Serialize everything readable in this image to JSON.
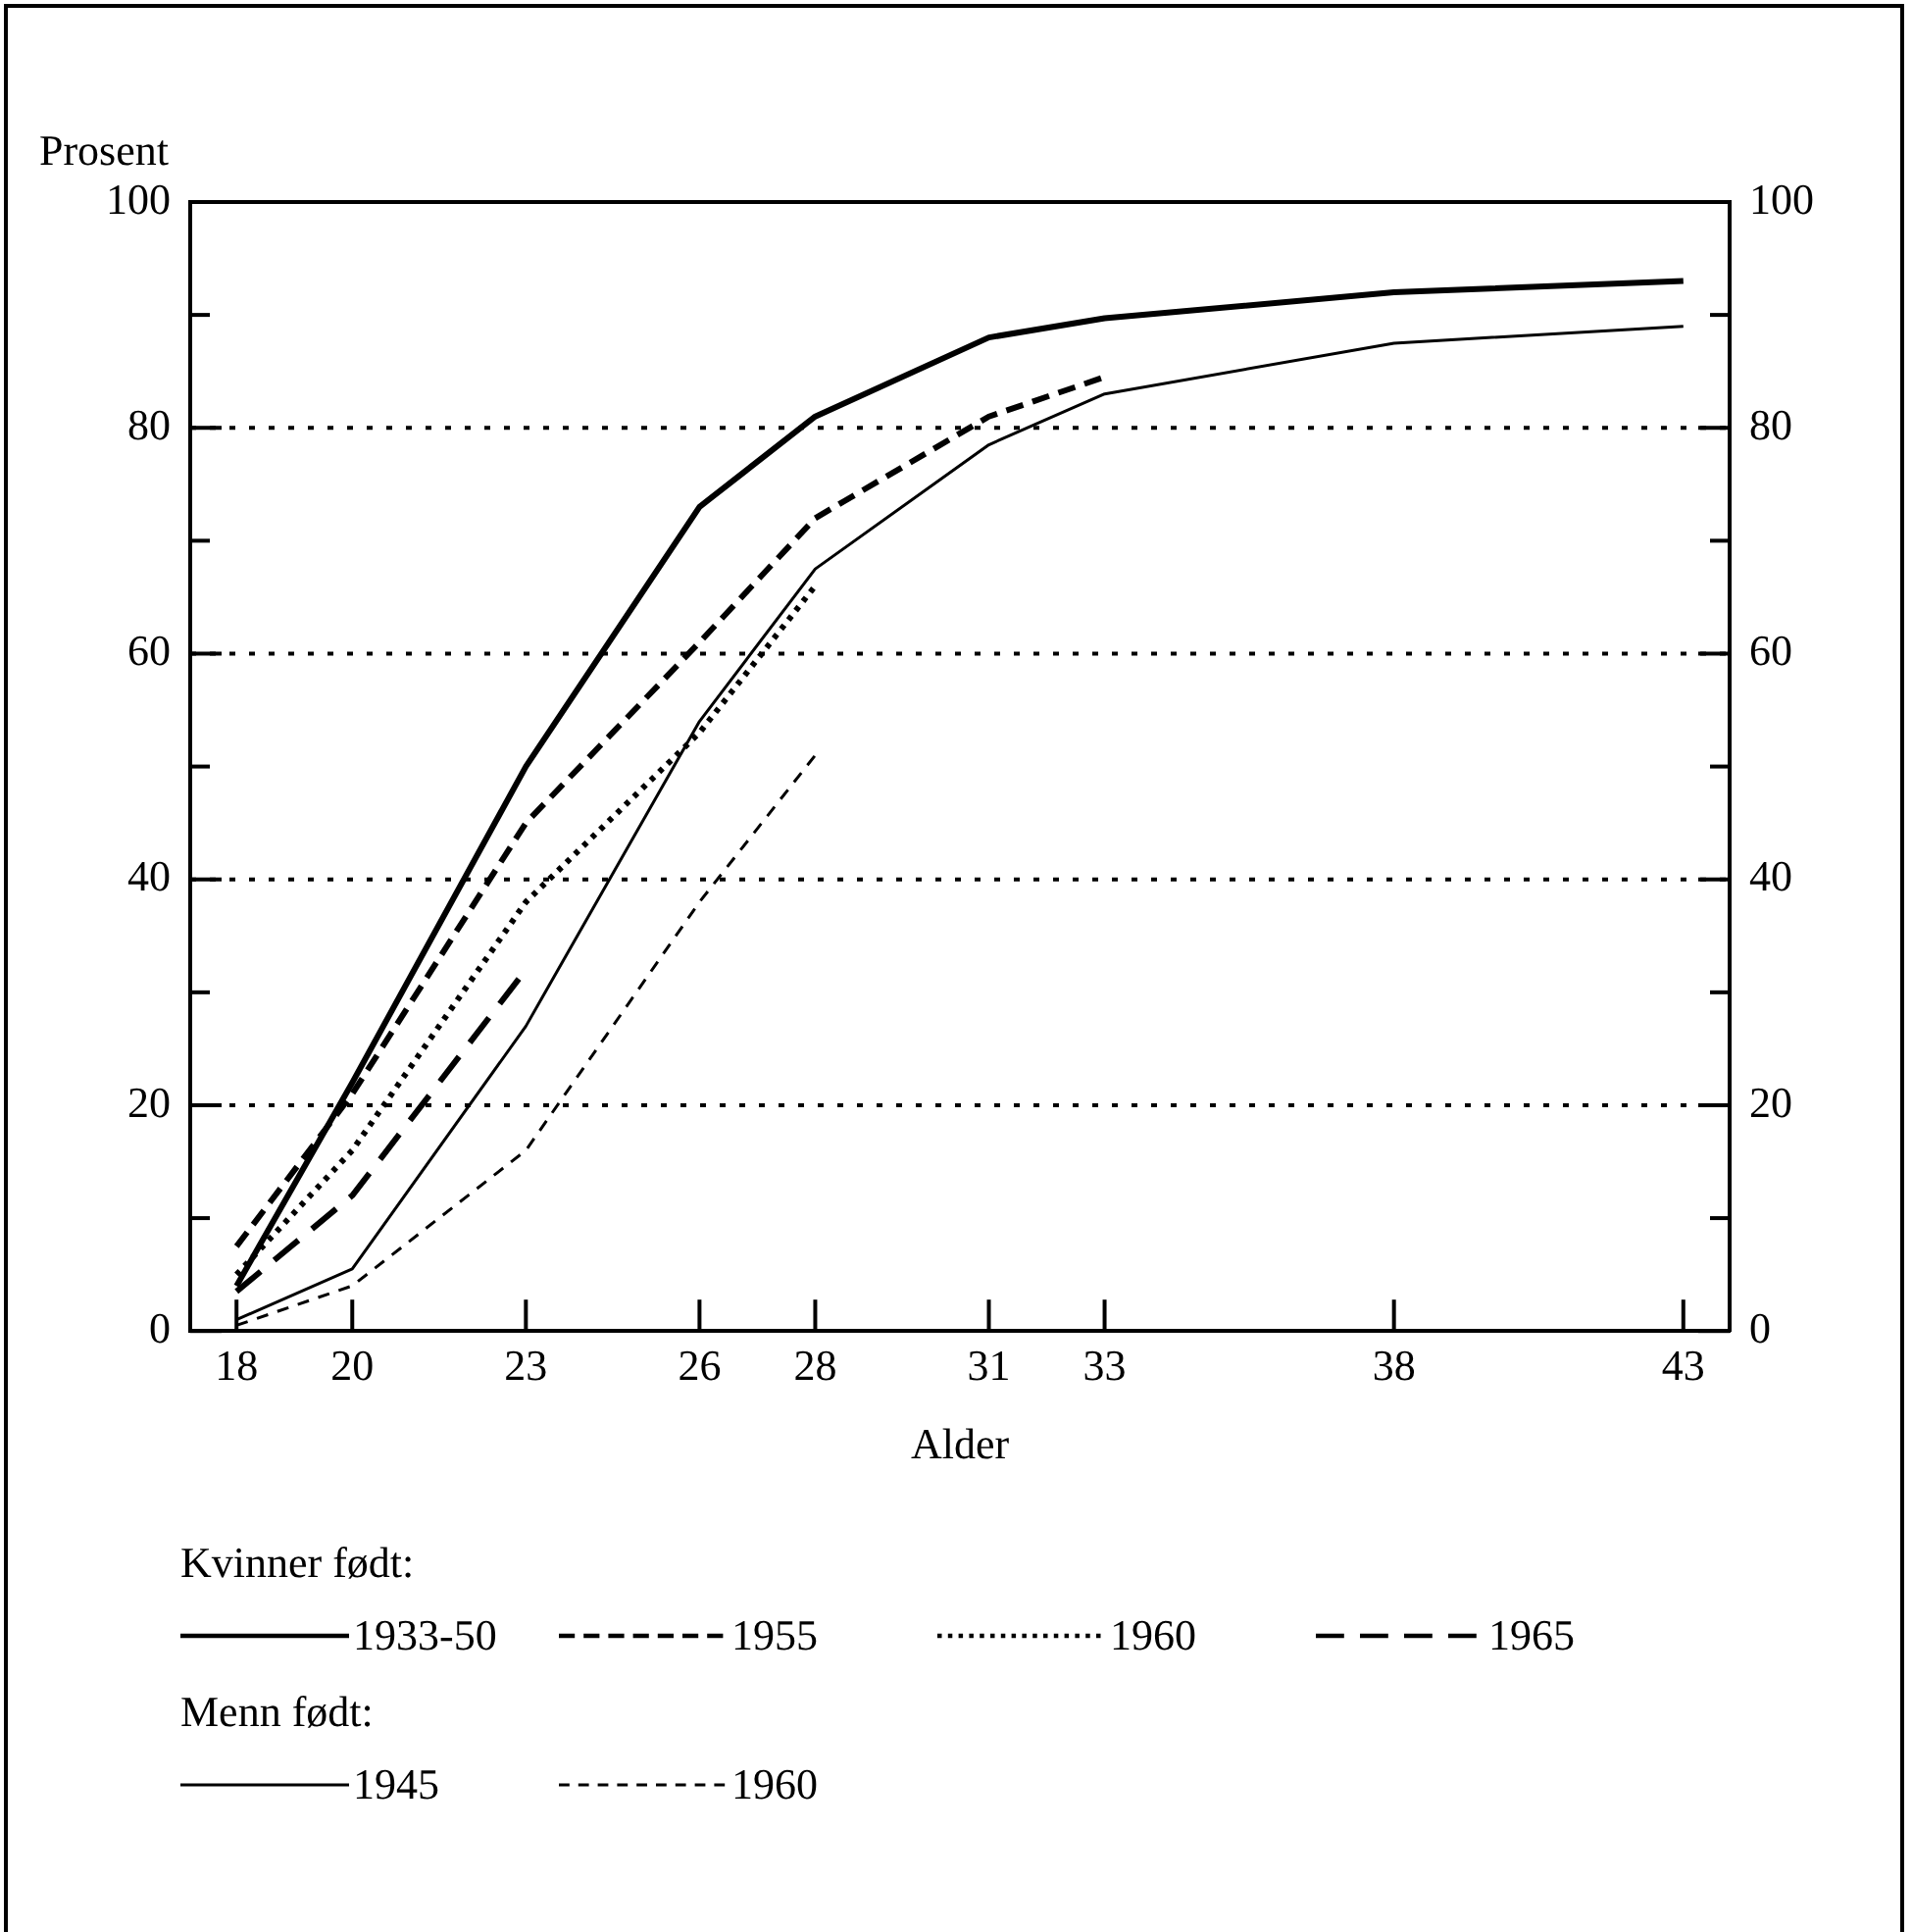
{
  "chart_data": {
    "type": "line",
    "xlabel": "Alder",
    "ylabel": "Prosent",
    "x": [
      18,
      20,
      23,
      26,
      28,
      31,
      33,
      38,
      43
    ],
    "xlim": [
      17.2,
      43.8
    ],
    "xticks": [
      18,
      20,
      23,
      26,
      28,
      31,
      33,
      38,
      43
    ],
    "ylim": [
      0,
      100
    ],
    "yticks": [
      0,
      {
        "value": 10,
        "label": null
      },
      20,
      {
        "value": 30,
        "label": null
      },
      40,
      {
        "value": 50,
        "label": null
      },
      60,
      {
        "value": 70,
        "label": null
      },
      80,
      {
        "value": 90,
        "label": null
      },
      100
    ],
    "y2lim": [
      0,
      100
    ],
    "y2ticks": [
      0,
      {
        "value": 10,
        "label": null
      },
      20,
      {
        "value": 30,
        "label": null
      },
      40,
      {
        "value": 50,
        "label": null
      },
      60,
      {
        "value": 70,
        "label": null
      },
      80,
      {
        "value": 90,
        "label": null
      },
      100
    ],
    "grid": "y",
    "legend": "bottom",
    "marker": "none",
    "annotations": [
      "Kvinner født:",
      "Menn født:"
    ],
    "series": [
      {
        "name": "1933-50",
        "color": "#000000",
        "line_style": "solid",
        "values": [
          4,
          22,
          50,
          73,
          81,
          88,
          89.7,
          92,
          93
        ]
      },
      {
        "name": "1955",
        "color": "#000000",
        "line_style": "dashed",
        "values": [
          7.5,
          21,
          45,
          61,
          72,
          81,
          84.5,
          null,
          null
        ]
      },
      {
        "name": "1960",
        "color": "#000000",
        "line_style": "dotted",
        "values": [
          5,
          16,
          38,
          53,
          66,
          null,
          null,
          null,
          null
        ]
      },
      {
        "name": "1965",
        "color": "#000000",
        "line_style": "dashed",
        "values": [
          3.5,
          12,
          32,
          null,
          null,
          null,
          null,
          null,
          null
        ]
      },
      {
        "name": "1945",
        "color": "#000000",
        "line_style": "solid",
        "values": [
          1,
          5.5,
          27,
          54,
          67.5,
          78.5,
          83,
          87.5,
          89
        ]
      },
      {
        "name": "1960",
        "color": "#000000",
        "line_style": "dashed",
        "values": [
          0.5,
          4,
          16,
          38,
          51,
          null,
          null,
          null,
          null
        ]
      }
    ]
  }
}
